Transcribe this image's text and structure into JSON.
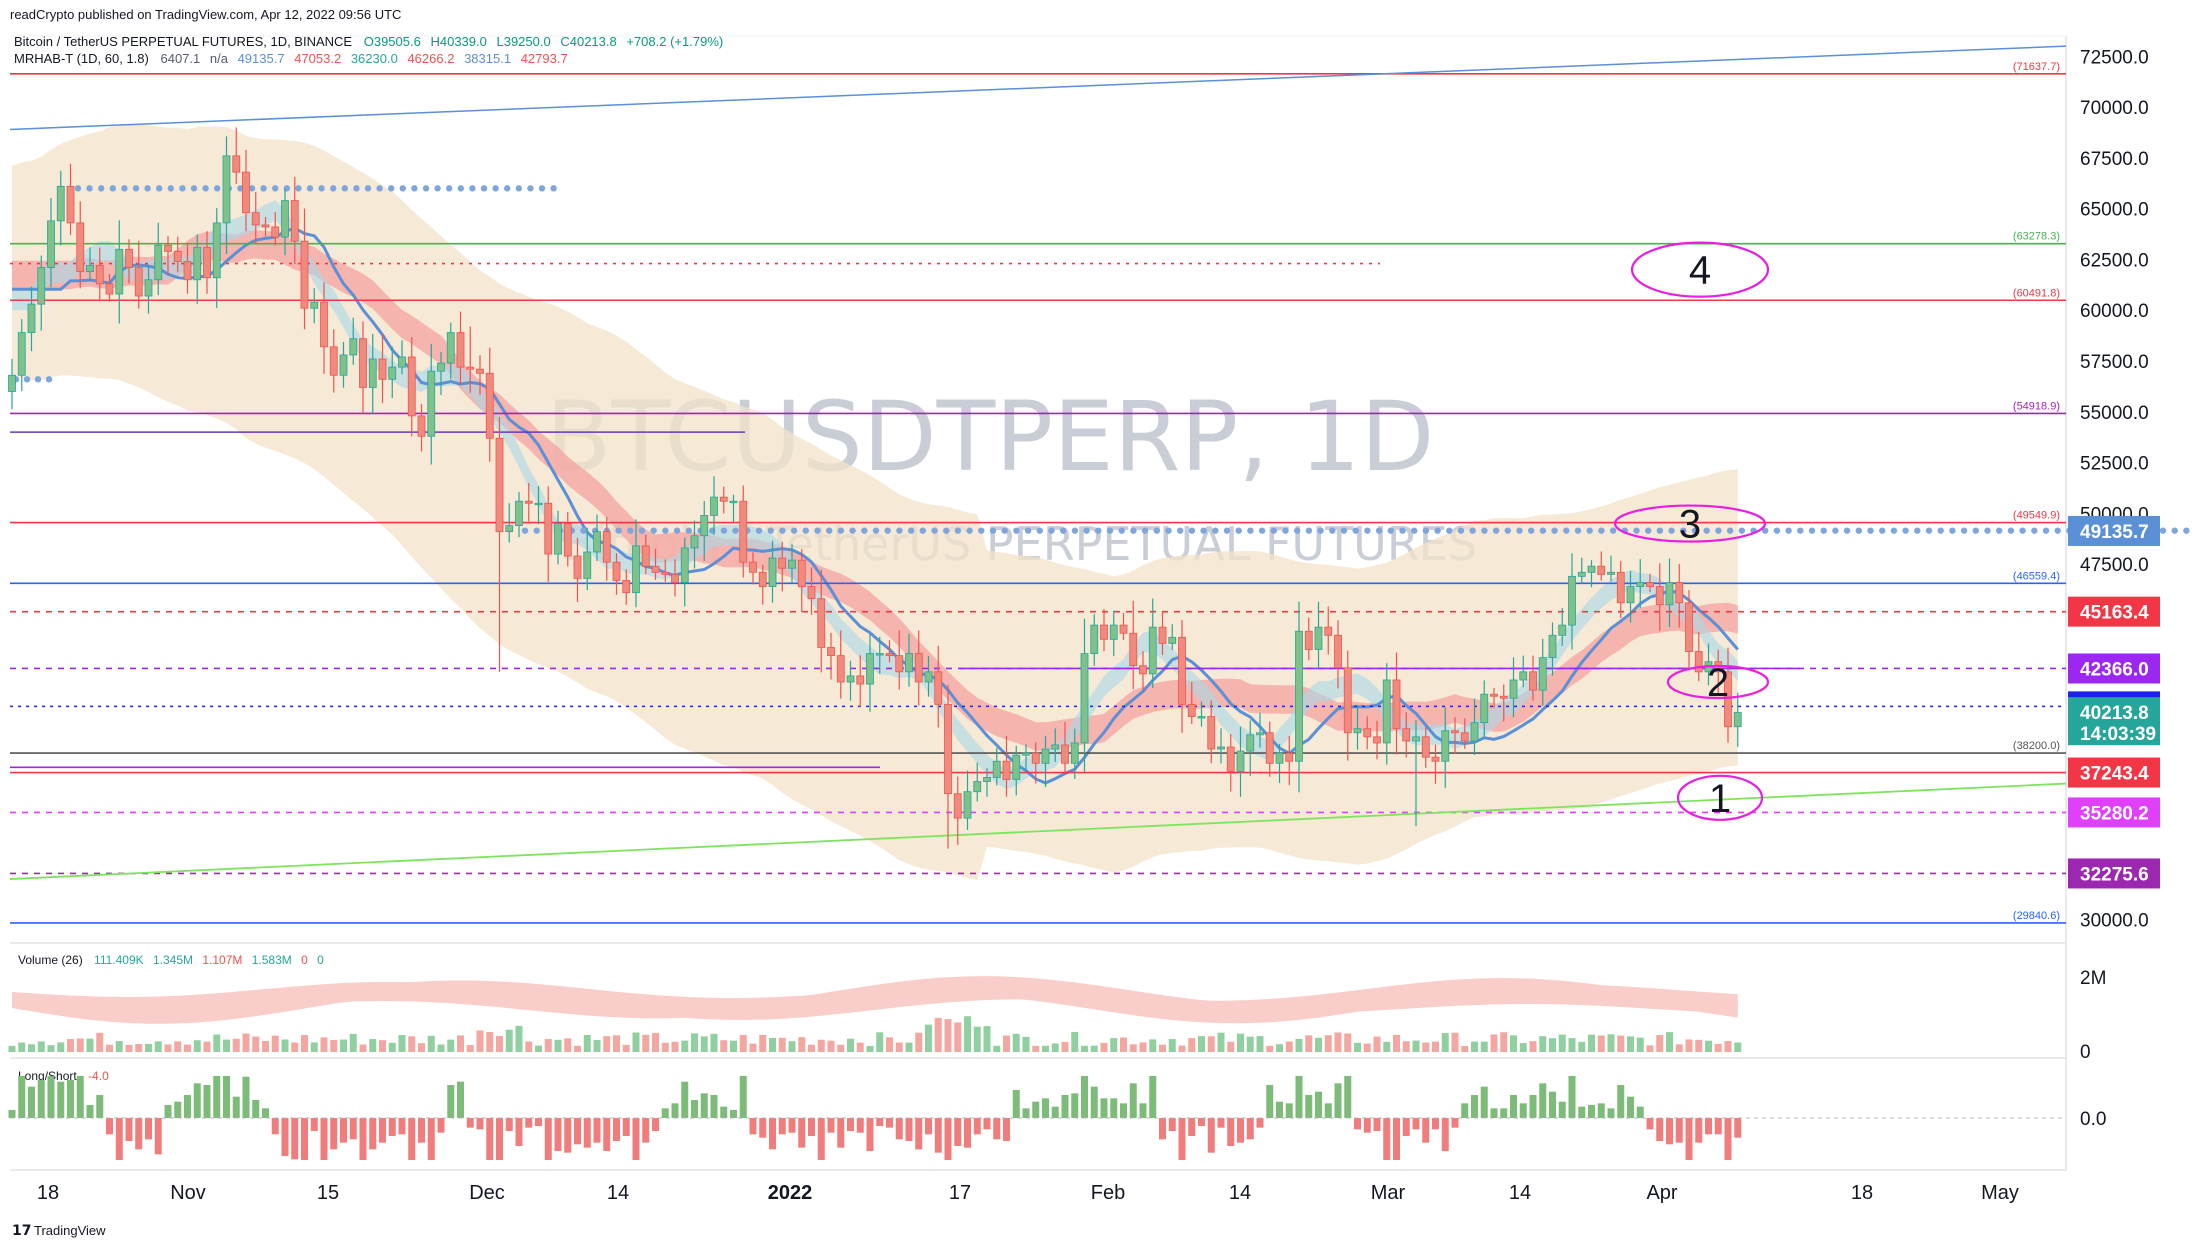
{
  "header": {
    "publisher": "readCrypto published on TradingView.com, Apr 12, 2022 09:56 UTC",
    "symbol_line": "Bitcoin / TetherUS PERPETUAL FUTURES, 1D, BINANCE",
    "ohlc": {
      "o": "O39505.6",
      "h": "H40339.0",
      "l": "L39250.0",
      "c": "C40213.8",
      "chg": "+708.2 (+1.79%)"
    },
    "indicator_name": "MRHAB-T (1D, 60, 1.8)",
    "indicator_values": [
      "6407.1",
      "n/a",
      "49135.7",
      "47053.2",
      "36230.0",
      "46266.2",
      "38315.1",
      "42793.7"
    ]
  },
  "watermark": {
    "symbol": "BTCUSDTPERP, 1D",
    "name": "Bitcoin / TetherUS PERPETUAL FUTURES"
  },
  "footer": {
    "brand": "TradingView"
  },
  "colors": {
    "up": "#26a69a",
    "down": "#ef5350",
    "ribbon_red": "#f4a2a0",
    "ribbon_blue": "#5b8fd6",
    "cloud": "#f3e2c7"
  },
  "chart_data": {
    "type": "candlestick",
    "symbol": "BTCUSDTPERP",
    "interval": "1D",
    "y_range": [
      29000,
      73500
    ],
    "y_ticks": [
      "72500.0",
      "70000.0",
      "67500.0",
      "65000.0",
      "62500.0",
      "60000.0",
      "57500.0",
      "55000.0",
      "52500.0",
      "50000.0",
      "47500.0",
      "45000.0",
      "42500.0",
      "40000.0",
      "37500.0",
      "35000.0",
      "32500.0",
      "30000.0"
    ],
    "x_ticks": [
      "18",
      "Nov",
      "15",
      "Dec",
      "14",
      "2022",
      "17",
      "Feb",
      "14",
      "Mar",
      "14",
      "Apr",
      "18",
      "May"
    ],
    "price_badges": [
      {
        "value": "49135.7",
        "color": "#5b8fd6"
      },
      {
        "value": "45163.4",
        "color": "#f23645"
      },
      {
        "value": "42366.0",
        "color": "#9c27f0"
      },
      {
        "value": "40500.3",
        "color": "#1e22e6"
      },
      {
        "value": "40213.8",
        "sub": "14:03:39",
        "color": "#26a69a"
      },
      {
        "value": "37243.4",
        "color": "#f23645"
      },
      {
        "value": "35280.2",
        "color": "#e040fb"
      },
      {
        "value": "32275.6",
        "color": "#9c27b0"
      }
    ],
    "level_labels": [
      {
        "text": "(71637.7)",
        "value": 71637.7,
        "color": "#f23645"
      },
      {
        "text": "(63278.3)",
        "value": 63278.3,
        "color": "#4caf50"
      },
      {
        "text": "(60491.8)",
        "value": 60491.8,
        "color": "#f23645"
      },
      {
        "text": "(54918.9)",
        "value": 54918.9,
        "color": "#9c27b0"
      },
      {
        "text": "(49549.9)",
        "value": 49549.9,
        "color": "#f23645"
      },
      {
        "text": "(46559.4)",
        "value": 46559.4,
        "color": "#2962ff"
      },
      {
        "text": "(38200.0)",
        "value": 38200.0,
        "color": "#555555"
      },
      {
        "text": "(29840.6)",
        "value": 29840.6,
        "color": "#2962ff"
      }
    ],
    "annotations": [
      "1",
      "2",
      "3",
      "4"
    ],
    "closes": [
      56800,
      58900,
      60300,
      62100,
      64400,
      66100,
      64300,
      61900,
      62200,
      61300,
      60800,
      63000,
      62100,
      60700,
      61500,
      63200,
      62900,
      62400,
      61500,
      63100,
      61600,
      64300,
      67600,
      66800,
      64800,
      64200,
      64100,
      63600,
      65400,
      63400,
      60100,
      60400,
      58200,
      56800,
      57800,
      58600,
      56200,
      57600,
      56600,
      57200,
      57700,
      54800,
      53800,
      57000,
      57400,
      58900,
      57200,
      57100,
      56900,
      53700,
      49100,
      49400,
      50600,
      50500,
      50500,
      48000,
      49500,
      47900,
      46800,
      48100,
      49100,
      47600,
      46700,
      46100,
      48400,
      47400,
      47100,
      47000,
      46600,
      48300,
      48900,
      49900,
      50800,
      50600,
      50600,
      47600,
      47100,
      46400,
      47800,
      47300,
      47700,
      46400,
      45800,
      43400,
      43000,
      41700,
      42000,
      41600,
      43100,
      43100,
      43000,
      42200,
      43100,
      41700,
      42200,
      40600,
      36200,
      35000,
      36300,
      36800,
      37000,
      37800,
      36900,
      38100,
      38200,
      37700,
      38400,
      38600,
      37700,
      38700,
      43100,
      44500,
      43800,
      44500,
      44100,
      42500,
      42100,
      44400,
      43600,
      43900,
      40600,
      40000,
      40000,
      38400,
      38500,
      37300,
      38300,
      39100,
      39200,
      37700,
      38200,
      37800,
      44200,
      43300,
      44400,
      44000,
      42400,
      39200,
      39400,
      39000,
      38700,
      41800,
      39400,
      38800,
      39000,
      38000,
      37800,
      39300,
      39200,
      38800,
      39700,
      41100,
      41000,
      40900,
      41800,
      42200,
      41300,
      42900,
      44000,
      44500,
      46900,
      47100,
      47400,
      47000,
      47100,
      45600,
      46400,
      46600,
      46400,
      45500,
      46600,
      45600,
      43200,
      42200,
      42700,
      42200,
      39500,
      40200
    ]
  },
  "volume_pane": {
    "label": "Volume (26)",
    "values": [
      "111.409K",
      "1.345M",
      "1.107M",
      "1.583M",
      "0",
      "0"
    ],
    "ticks": [
      "2M",
      "0"
    ]
  },
  "longshort_pane": {
    "label": "Long/Short",
    "value": "-4.0",
    "ticks": [
      "0.0"
    ]
  }
}
